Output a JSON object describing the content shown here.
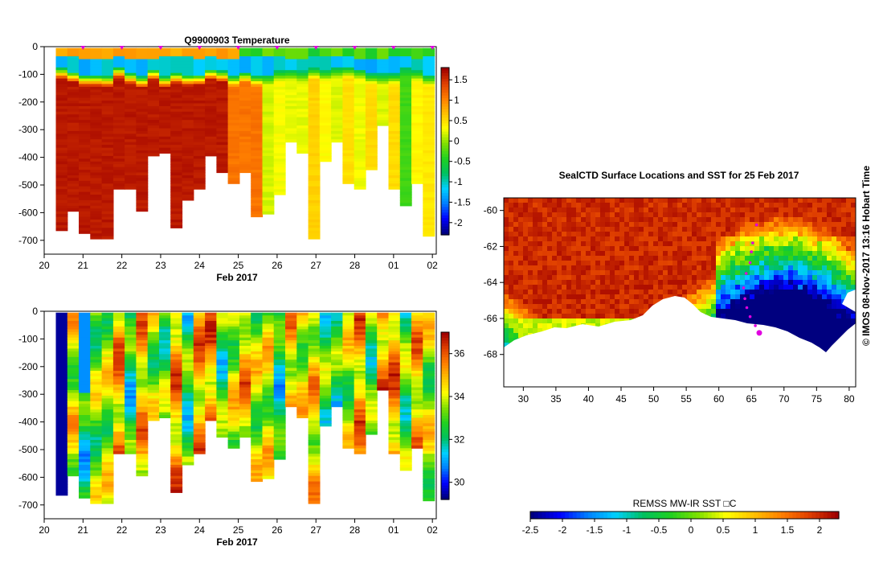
{
  "colors": {
    "background": "#ffffff",
    "colormap": [
      "#00007f",
      "#0000ff",
      "#007fff",
      "#00d0ff",
      "#00c060",
      "#20d020",
      "#7fe000",
      "#ffff00",
      "#ffc000",
      "#ff7f00",
      "#e04000",
      "#a00000"
    ],
    "marker": "#e000e0"
  },
  "chart_data": [
    {
      "type": "heatmap",
      "title": "Q9900903  Temperature",
      "xlabel": "Feb 2017",
      "ylabel": "",
      "x_ticks": [
        "20",
        "21",
        "22",
        "23",
        "24",
        "25",
        "26",
        "27",
        "28",
        "01",
        "02"
      ],
      "y_ticks": [
        "0",
        "-100",
        "-200",
        "-300",
        "-400",
        "-500",
        "-600",
        "-700"
      ],
      "y_tick_values": [
        0,
        -100,
        -200,
        -300,
        -400,
        -500,
        -600,
        -700
      ],
      "xlim": [
        20,
        30.1
      ],
      "ylim": [
        -750,
        0
      ],
      "colorbar_ticks": [
        "1.5",
        "1",
        "0.5",
        "0",
        "-0.5",
        "-1",
        "-1.5",
        "-2"
      ],
      "colorbar_values": [
        1.5,
        1,
        0.5,
        0,
        -0.5,
        -1,
        -1.5,
        -2
      ],
      "colorbar_range": [
        -2.3,
        1.8
      ],
      "profile_times": [
        20.3,
        20.6,
        21.0,
        21.3,
        21.6,
        22.0,
        22.3,
        22.6,
        22.9,
        23.2,
        23.4,
        23.7,
        24.0,
        24.3,
        24.6,
        24.9,
        25.2,
        25.5,
        25.8,
        26.1,
        26.4,
        26.7,
        27.0,
        27.3,
        27.6,
        27.9,
        28.2,
        28.5,
        28.8,
        29.1,
        29.4,
        29.7,
        30.0
      ],
      "profile_max_depth": [
        665,
        600,
        680,
        700,
        700,
        520,
        520,
        600,
        400,
        385,
        660,
        560,
        520,
        400,
        455,
        500,
        455,
        620,
        610,
        540,
        350,
        390,
        700,
        415,
        350,
        500,
        520,
        450,
        290,
        520,
        580,
        500,
        690
      ],
      "markers_x": [
        21,
        22,
        23,
        24,
        25,
        26,
        27,
        28,
        29,
        30
      ],
      "markers_depth": 0
    },
    {
      "type": "heatmap",
      "title": "",
      "xlabel": "Feb 2017",
      "ylabel": "",
      "x_ticks": [
        "20",
        "21",
        "22",
        "23",
        "24",
        "25",
        "26",
        "27",
        "28",
        "01",
        "02"
      ],
      "y_ticks": [
        "0",
        "-100",
        "-200",
        "-300",
        "-400",
        "-500",
        "-600",
        "-700"
      ],
      "y_tick_values": [
        0,
        -100,
        -200,
        -300,
        -400,
        -500,
        -600,
        -700
      ],
      "xlim": [
        20,
        30.1
      ],
      "ylim": [
        -750,
        0
      ],
      "colorbar_ticks": [
        "36",
        "34",
        "32",
        "30"
      ],
      "colorbar_values": [
        36,
        34,
        32,
        30
      ],
      "colorbar_range": [
        29.2,
        37
      ],
      "profile_max_depth": [
        665,
        600,
        680,
        700,
        700,
        520,
        520,
        600,
        400,
        385,
        660,
        560,
        520,
        400,
        455,
        500,
        455,
        620,
        610,
        540,
        350,
        390,
        700,
        415,
        350,
        500,
        520,
        450,
        290,
        520,
        580,
        500,
        690
      ]
    },
    {
      "type": "heatmap",
      "title": "SealCTD Surface Locations and SST for 25 Feb 2017",
      "xlabel": "",
      "ylabel": "",
      "x_ticks": [
        "30",
        "35",
        "40",
        "45",
        "50",
        "55",
        "60",
        "65",
        "70",
        "75",
        "80"
      ],
      "x_tick_values": [
        30,
        35,
        40,
        45,
        50,
        55,
        60,
        65,
        70,
        75,
        80
      ],
      "y_ticks": [
        "-60",
        "-62",
        "-64",
        "-66",
        "-68"
      ],
      "y_tick_values": [
        -60,
        -62,
        -64,
        -66,
        -68
      ],
      "xlim": [
        27,
        81
      ],
      "ylim": [
        -69.8,
        -59.3
      ],
      "colorbar_label": "REMSS MW-IR SST □C",
      "colorbar_ticks": [
        "-2.5",
        "-2",
        "-1.5",
        "-1",
        "-0.5",
        "0",
        "0.5",
        "1",
        "1.5",
        "2"
      ],
      "colorbar_values": [
        -2.5,
        -2,
        -1.5,
        -1,
        -0.5,
        0,
        0.5,
        1,
        1.5,
        2
      ],
      "colorbar_range": [
        -2.5,
        2.3
      ],
      "seal_locations": [
        {
          "lon": 65.8,
          "lat": -60.8
        },
        {
          "lon": 65.2,
          "lat": -61.8
        },
        {
          "lon": 65.0,
          "lat": -62.3
        },
        {
          "lon": 64.8,
          "lat": -62.9
        },
        {
          "lon": 64.2,
          "lat": -63.5
        },
        {
          "lon": 63.8,
          "lat": -64.3
        },
        {
          "lon": 64.0,
          "lat": -64.9
        },
        {
          "lon": 64.3,
          "lat": -65.4
        },
        {
          "lon": 64.8,
          "lat": -65.9
        },
        {
          "lon": 65.6,
          "lat": -66.4
        },
        {
          "lon": 66.2,
          "lat": -66.8
        }
      ]
    }
  ],
  "side_text": "©  IMOS 08-Nov-2017 13:16 Hobart Time"
}
